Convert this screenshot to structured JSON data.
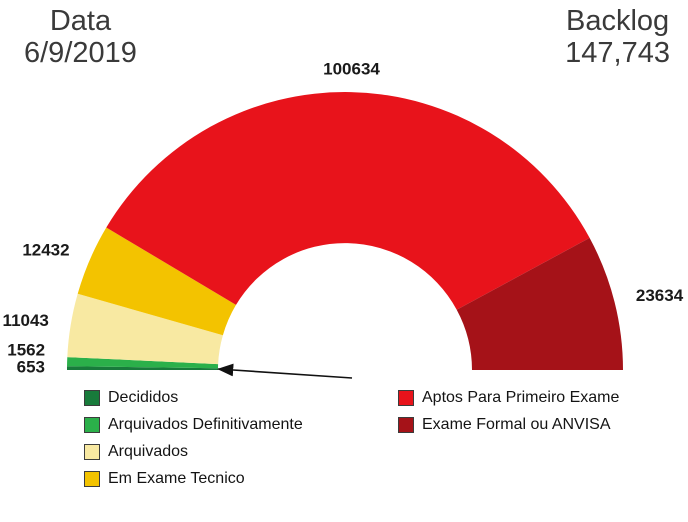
{
  "header": {
    "date_label": "Data",
    "date_value": "6/9/2019",
    "backlog_label": "Backlog",
    "backlog_value": "147,743"
  },
  "chart_data": {
    "type": "pie",
    "subtype": "half-donut",
    "start_angle_deg": 180,
    "end_angle_deg": 0,
    "inner_radius_ratio": 0.457,
    "legend_position": "bottom",
    "legend_columns": [
      [
        0,
        1,
        2,
        3
      ],
      [
        4,
        5
      ]
    ],
    "segments": [
      {
        "label": "Decididos",
        "value": 653,
        "color": "#187b3b"
      },
      {
        "label": "Arquivados Definitivamente",
        "value": 1562,
        "color": "#2bb04a"
      },
      {
        "label": "Arquivados",
        "value": 11043,
        "color": "#f8e9a2"
      },
      {
        "label": "Em Exame Tecnico",
        "value": 12432,
        "color": "#f3c300"
      },
      {
        "label": "Aptos Para Primeiro Exame",
        "value": 100634,
        "color": "#e8131b"
      },
      {
        "label": "Exame Formal ou ANVISA",
        "value": 23634,
        "color": "#a51218"
      }
    ],
    "annotations": [
      {
        "type": "arrow",
        "target": "smallest segments (Decididos / Arquivados Definitivamente)"
      }
    ]
  }
}
